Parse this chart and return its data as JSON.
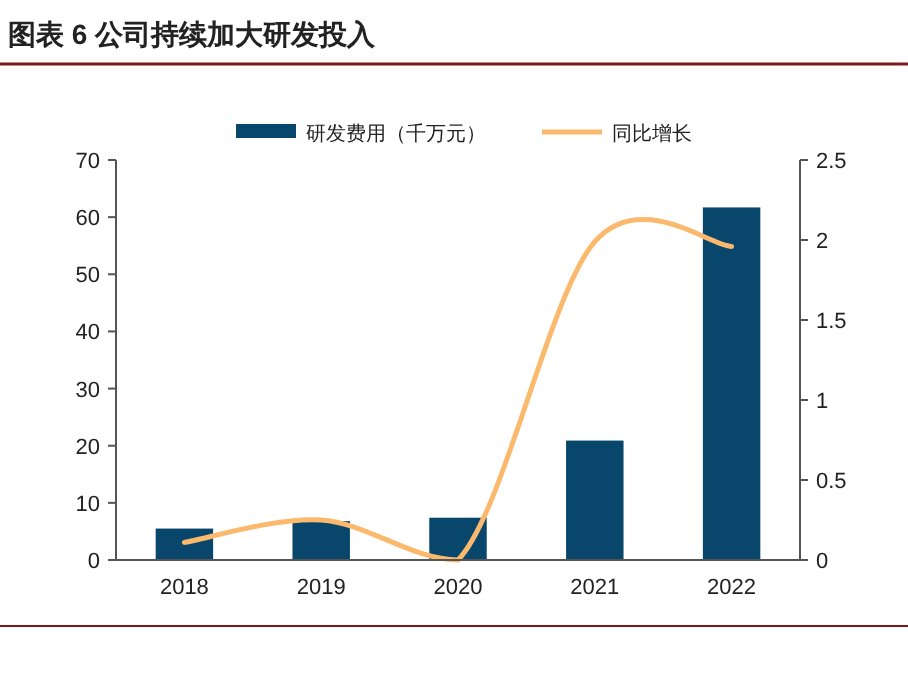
{
  "chart_data": {
    "type": "bar",
    "title": "图表 6  公司持续加大研发投入",
    "categories": [
      "2018",
      "2019",
      "2020",
      "2021",
      "2022"
    ],
    "series": [
      {
        "name": "研发费用（千万元）",
        "color": "#08466b",
        "values": [
          5.5,
          6.8,
          7.4,
          20.9,
          61.7
        ]
      },
      {
        "name": "同比增长",
        "type": "line",
        "axis": "y2",
        "color": "#fbb96e",
        "values": [
          0.11,
          0.25,
          0.0,
          1.99,
          1.96
        ]
      }
    ],
    "ylim": [
      0,
      70
    ],
    "yticks": [
      0,
      10,
      20,
      30,
      40,
      50,
      60,
      70
    ],
    "y2lim": [
      0,
      2.5
    ],
    "y2ticks": [
      0,
      0.5,
      1,
      1.5,
      2,
      2.5
    ],
    "legend": "top",
    "grid": false
  }
}
